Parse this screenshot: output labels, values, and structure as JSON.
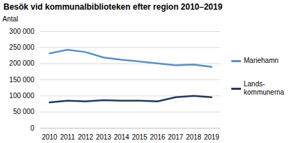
{
  "chart_data": {
    "type": "line",
    "title": "Besök vid kommunalbiblioteken efter region 2010–2019",
    "y_label": "Antal",
    "categories": [
      "2010",
      "2011",
      "2012",
      "2013",
      "2014",
      "2015",
      "2016",
      "2017",
      "2018",
      "2019"
    ],
    "series": [
      {
        "name": "Mariehamn",
        "color": "#5b8ec9",
        "values": [
          232000,
          243000,
          236000,
          219000,
          212000,
          207000,
          201000,
          195000,
          197000,
          190000
        ]
      },
      {
        "name": "Lands-kommunerna",
        "color": "#1f3a5a",
        "values": [
          80000,
          85000,
          83000,
          87000,
          85000,
          85000,
          83000,
          96000,
          100000,
          96000
        ]
      }
    ],
    "ylim": [
      0,
      300000
    ],
    "yticks": [
      0,
      {
        "value": 50000,
        "label": "50 000"
      },
      {
        "value": 100000,
        "label": "100 000"
      },
      {
        "value": 150000,
        "label": "150 000"
      },
      {
        "value": 200000,
        "label": "200 000"
      },
      {
        "value": 250000,
        "label": "250 000"
      },
      {
        "value": 300000,
        "label": "300 000"
      }
    ],
    "grid": true
  }
}
